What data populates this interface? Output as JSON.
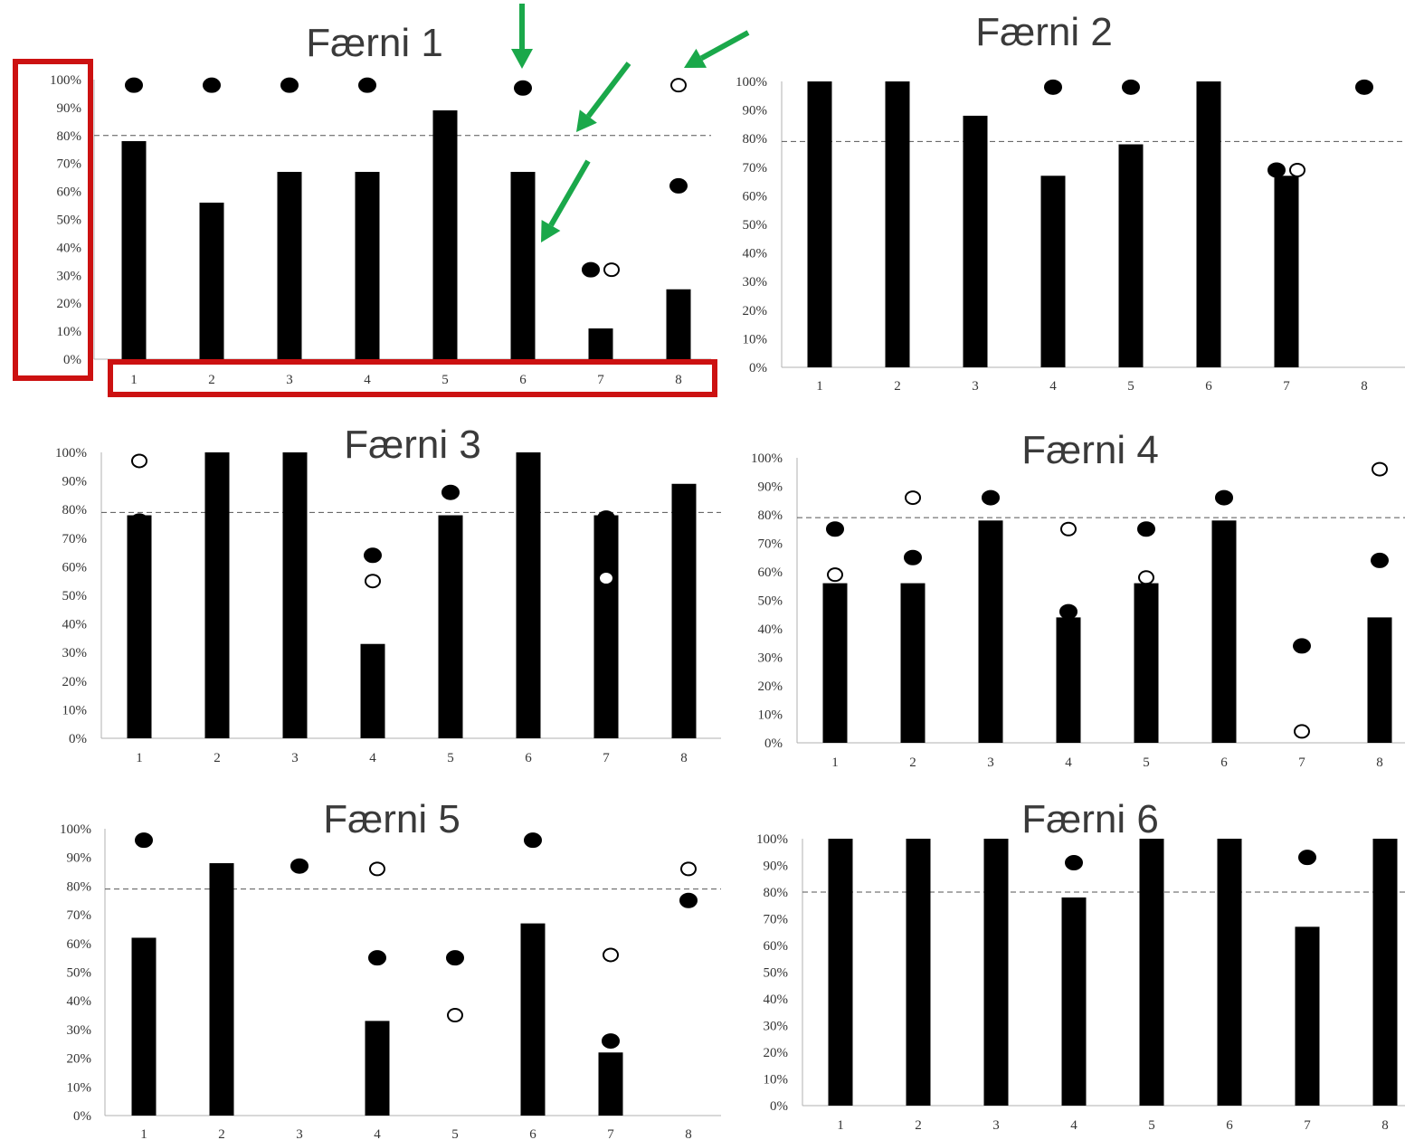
{
  "colors": {
    "bar": "#000000",
    "reference_line": "#555555",
    "highlight_box": "#cc1111",
    "arrow": "#1aa84a"
  },
  "chart_data": [
    {
      "type": "bar",
      "title": "Færni 1",
      "categories": [
        "1",
        "2",
        "3",
        "4",
        "5",
        "6",
        "7",
        "8"
      ],
      "yticks": [
        "0%",
        "10%",
        "20%",
        "30%",
        "40%",
        "50%",
        "60%",
        "70%",
        "80%",
        "90%",
        "100%"
      ],
      "ylim": [
        0,
        100
      ],
      "reference_line": 80,
      "values": [
        78,
        56,
        67,
        67,
        89,
        67,
        11,
        25
      ],
      "filled_markers": [
        [
          1,
          98
        ],
        [
          2,
          98
        ],
        [
          3,
          98
        ],
        [
          4,
          98
        ],
        [
          6,
          97
        ],
        [
          7,
          32
        ],
        [
          8,
          62
        ]
      ],
      "open_markers": [
        [
          7,
          32
        ],
        [
          8,
          98
        ]
      ],
      "annotations": "x and y tick labels boxed in red; green arrows point at markers, reference line and a bar"
    },
    {
      "type": "bar",
      "title": "Færni 2",
      "categories": [
        "1",
        "2",
        "3",
        "4",
        "5",
        "6",
        "7",
        "8"
      ],
      "yticks": [
        "0%",
        "10%",
        "20%",
        "30%",
        "40%",
        "50%",
        "60%",
        "70%",
        "80%",
        "90%",
        "100%"
      ],
      "ylim": [
        0,
        100
      ],
      "reference_line": 79,
      "values": [
        100,
        100,
        88,
        67,
        78,
        100,
        67,
        0
      ],
      "filled_markers": [
        [
          4,
          98
        ],
        [
          5,
          98
        ],
        [
          7,
          69
        ],
        [
          8,
          98
        ]
      ],
      "open_markers": [
        [
          7,
          69
        ]
      ]
    },
    {
      "type": "bar",
      "title": "Færni 3",
      "categories": [
        "1",
        "2",
        "3",
        "4",
        "5",
        "6",
        "7",
        "8"
      ],
      "yticks": [
        "0%",
        "10%",
        "20%",
        "30%",
        "40%",
        "50%",
        "60%",
        "70%",
        "80%",
        "90%",
        "100%"
      ],
      "ylim": [
        0,
        100
      ],
      "reference_line": 79,
      "values": [
        78,
        100,
        100,
        33,
        78,
        100,
        78,
        89
      ],
      "filled_markers": [
        [
          1,
          76
        ],
        [
          4,
          64
        ],
        [
          5,
          86
        ],
        [
          7,
          77
        ]
      ],
      "open_markers": [
        [
          1,
          97
        ],
        [
          4,
          55
        ],
        [
          7,
          56
        ]
      ]
    },
    {
      "type": "bar",
      "title": "Færni 4",
      "categories": [
        "1",
        "2",
        "3",
        "4",
        "5",
        "6",
        "7",
        "8"
      ],
      "yticks": [
        "0%",
        "10%",
        "20%",
        "30%",
        "40%",
        "50%",
        "60%",
        "70%",
        "80%",
        "90%",
        "100%"
      ],
      "ylim": [
        0,
        100
      ],
      "reference_line": 79,
      "values": [
        56,
        56,
        78,
        44,
        56,
        78,
        0,
        44
      ],
      "filled_markers": [
        [
          1,
          75
        ],
        [
          2,
          65
        ],
        [
          3,
          86
        ],
        [
          4,
          46
        ],
        [
          5,
          75
        ],
        [
          6,
          86
        ],
        [
          7,
          34
        ],
        [
          8,
          64
        ]
      ],
      "open_markers": [
        [
          1,
          59
        ],
        [
          2,
          86
        ],
        [
          4,
          75
        ],
        [
          5,
          58
        ],
        [
          7,
          4
        ],
        [
          8,
          96
        ]
      ]
    },
    {
      "type": "bar",
      "title": "Færni 5",
      "categories": [
        "1",
        "2",
        "3",
        "4",
        "5",
        "6",
        "7",
        "8"
      ],
      "yticks": [
        "0%",
        "10%",
        "20%",
        "30%",
        "40%",
        "50%",
        "60%",
        "70%",
        "80%",
        "90%",
        "100%"
      ],
      "ylim": [
        0,
        100
      ],
      "reference_line": 79,
      "values": [
        62,
        88,
        0,
        33,
        0,
        67,
        22,
        0
      ],
      "filled_markers": [
        [
          1,
          96
        ],
        [
          3,
          87
        ],
        [
          4,
          55
        ],
        [
          5,
          55
        ],
        [
          6,
          96
        ],
        [
          7,
          26
        ],
        [
          8,
          75
        ]
      ],
      "open_markers": [
        [
          4,
          86
        ],
        [
          5,
          35
        ],
        [
          7,
          56
        ],
        [
          8,
          86
        ]
      ]
    },
    {
      "type": "bar",
      "title": "Færni 6",
      "categories": [
        "1",
        "2",
        "3",
        "4",
        "5",
        "6",
        "7",
        "8"
      ],
      "yticks": [
        "0%",
        "10%",
        "20%",
        "30%",
        "40%",
        "50%",
        "60%",
        "70%",
        "80%",
        "90%",
        "100%"
      ],
      "ylim": [
        0,
        100
      ],
      "reference_line": 80,
      "values": [
        100,
        100,
        100,
        78,
        100,
        100,
        67,
        100
      ],
      "filled_markers": [
        [
          4,
          91
        ],
        [
          7,
          93
        ]
      ],
      "open_markers": []
    }
  ]
}
